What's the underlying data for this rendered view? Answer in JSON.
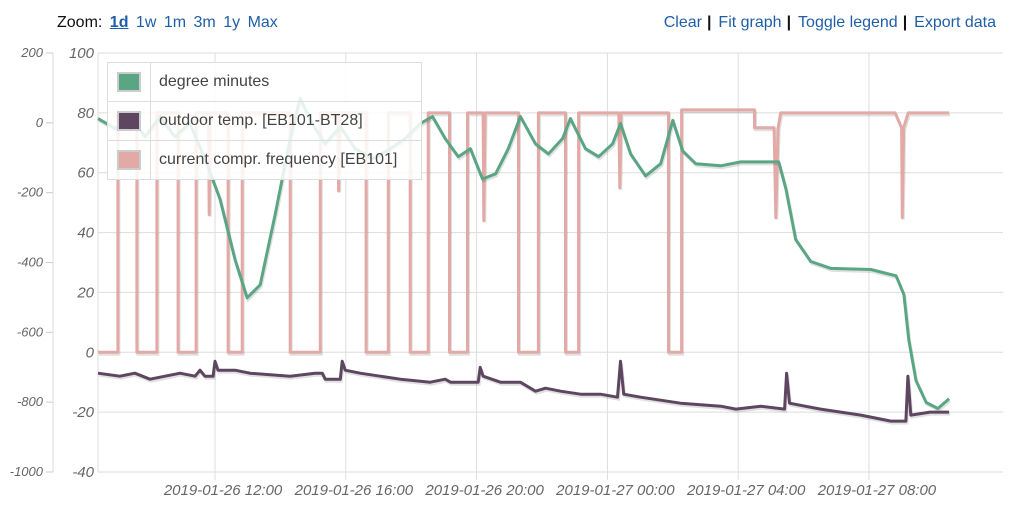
{
  "zoom": {
    "label": "Zoom:",
    "options": [
      "1d",
      "1w",
      "1m",
      "3m",
      "1y",
      "Max"
    ],
    "active": "1d"
  },
  "actions": {
    "clear": "Clear",
    "fit": "Fit graph",
    "toggle_legend": "Toggle legend",
    "export": "Export data"
  },
  "colors": {
    "degree_minutes": "#5aa684",
    "outdoor": "#5e4660",
    "compressor": "#e3a9a6",
    "link": "#1f5fa8"
  },
  "chart_data": {
    "type": "line",
    "x_unit": "hours since 2019-01-26 00:00",
    "xlim": [
      8.42,
      36.1
    ],
    "x_ticks": [
      12,
      16,
      20,
      24,
      28,
      32
    ],
    "x_tick_labels": [
      "2019-01-26 12:00",
      "2019-01-26 16:00",
      "2019-01-26 20:00",
      "2019-01-27 00:00",
      "2019-01-27 04:00",
      "2019-01-27 08:00"
    ],
    "y_left": {
      "ylim": [
        -1000,
        200
      ],
      "ticks": [
        "200",
        "0",
        "-200",
        "-400",
        "-600",
        "-800",
        "-1000"
      ]
    },
    "y_right": {
      "ylim": [
        -40,
        100
      ],
      "ticks": [
        "100",
        "80",
        "60",
        "40",
        "20",
        "0",
        "-20",
        "-40"
      ]
    },
    "grid": true,
    "legend_position": "top-left",
    "series": [
      {
        "name": "degree minutes",
        "axis": "left",
        "color": "#5aa684",
        "points": [
          [
            8.42,
            12
          ],
          [
            8.94,
            -16
          ],
          [
            9.4,
            18
          ],
          [
            9.86,
            -39
          ],
          [
            10.32,
            18
          ],
          [
            10.77,
            -39
          ],
          [
            11.23,
            -2
          ],
          [
            11.69,
            -103
          ],
          [
            12.15,
            -218
          ],
          [
            12.61,
            -391
          ],
          [
            12.98,
            -501
          ],
          [
            13.38,
            -464
          ],
          [
            13.84,
            -262
          ],
          [
            14.3,
            -45
          ],
          [
            14.6,
            70
          ],
          [
            14.97,
            -2
          ],
          [
            15.37,
            -60
          ],
          [
            15.83,
            -11
          ],
          [
            16.29,
            -74
          ],
          [
            16.81,
            -103
          ],
          [
            17.36,
            -74
          ],
          [
            17.82,
            -45
          ],
          [
            18.28,
            -2
          ],
          [
            18.65,
            18
          ],
          [
            19.04,
            -45
          ],
          [
            19.44,
            -97
          ],
          [
            19.81,
            -74
          ],
          [
            20.18,
            -161
          ],
          [
            20.58,
            -146
          ],
          [
            20.97,
            -74
          ],
          [
            21.34,
            18
          ],
          [
            21.8,
            -60
          ],
          [
            22.2,
            -89
          ],
          [
            22.63,
            -45
          ],
          [
            22.87,
            12
          ],
          [
            23.33,
            -74
          ],
          [
            23.73,
            -97
          ],
          [
            24.16,
            -60
          ],
          [
            24.4,
            -2
          ],
          [
            24.71,
            -89
          ],
          [
            25.17,
            -152
          ],
          [
            25.63,
            -117
          ],
          [
            26.0,
            7
          ],
          [
            26.3,
            -80
          ],
          [
            26.7,
            -117
          ],
          [
            27.47,
            -123
          ],
          [
            28.08,
            -112
          ],
          [
            29.24,
            -112
          ],
          [
            29.46,
            -189
          ],
          [
            29.76,
            -334
          ],
          [
            30.22,
            -397
          ],
          [
            30.84,
            -417
          ],
          [
            32.06,
            -420
          ],
          [
            32.83,
            -438
          ],
          [
            33.07,
            -492
          ],
          [
            33.22,
            -622
          ],
          [
            33.44,
            -738
          ],
          [
            33.75,
            -801
          ],
          [
            34.11,
            -818
          ],
          [
            34.45,
            -790
          ]
        ]
      },
      {
        "name": "outdoor temp. [EB101-BT28]",
        "axis": "right",
        "color": "#5e4660",
        "points": [
          [
            8.42,
            -7
          ],
          [
            9.09,
            -8
          ],
          [
            9.55,
            -7
          ],
          [
            10.01,
            -9
          ],
          [
            10.47,
            -8
          ],
          [
            10.93,
            -7
          ],
          [
            11.39,
            -8
          ],
          [
            11.54,
            -6
          ],
          [
            11.69,
            -8
          ],
          [
            11.94,
            -8
          ],
          [
            12.0,
            -3
          ],
          [
            12.09,
            -6
          ],
          [
            12.61,
            -6
          ],
          [
            13.07,
            -7
          ],
          [
            14.3,
            -8
          ],
          [
            15.06,
            -7
          ],
          [
            15.28,
            -7
          ],
          [
            15.37,
            -9
          ],
          [
            15.83,
            -9
          ],
          [
            15.89,
            -3
          ],
          [
            15.98,
            -6
          ],
          [
            16.44,
            -7
          ],
          [
            17.05,
            -8
          ],
          [
            17.67,
            -9
          ],
          [
            18.58,
            -10
          ],
          [
            19.04,
            -9
          ],
          [
            19.2,
            -10
          ],
          [
            20.05,
            -10
          ],
          [
            20.11,
            -5
          ],
          [
            20.2,
            -8
          ],
          [
            20.73,
            -10
          ],
          [
            21.34,
            -10
          ],
          [
            21.8,
            -13
          ],
          [
            22.11,
            -12
          ],
          [
            22.57,
            -13
          ],
          [
            23.18,
            -14
          ],
          [
            23.79,
            -14
          ],
          [
            24.31,
            -15
          ],
          [
            24.4,
            -3
          ],
          [
            24.5,
            -14
          ],
          [
            25.02,
            -15
          ],
          [
            25.63,
            -16
          ],
          [
            26.24,
            -17
          ],
          [
            27.47,
            -18
          ],
          [
            27.93,
            -19
          ],
          [
            28.69,
            -18
          ],
          [
            29.42,
            -19
          ],
          [
            29.48,
            -7
          ],
          [
            29.57,
            -17
          ],
          [
            30.52,
            -19
          ],
          [
            31.75,
            -21
          ],
          [
            32.67,
            -23
          ],
          [
            33.13,
            -23
          ],
          [
            33.19,
            -8
          ],
          [
            33.28,
            -21
          ],
          [
            33.87,
            -20
          ],
          [
            34.45,
            -20
          ]
        ]
      },
      {
        "name": "current compr. frequency [EB101]",
        "axis": "right",
        "color": "#e3a9a6",
        "points": [
          [
            8.42,
            0
          ],
          [
            9.03,
            0
          ],
          [
            9.03,
            80
          ],
          [
            9.61,
            80
          ],
          [
            9.61,
            0
          ],
          [
            10.22,
            0
          ],
          [
            10.22,
            80
          ],
          [
            10.87,
            80
          ],
          [
            10.87,
            0
          ],
          [
            11.42,
            0
          ],
          [
            11.42,
            80
          ],
          [
            11.8,
            80
          ],
          [
            11.82,
            46
          ],
          [
            11.85,
            80
          ],
          [
            12.4,
            80
          ],
          [
            12.4,
            0
          ],
          [
            12.83,
            0
          ],
          [
            12.83,
            80
          ],
          [
            14.3,
            80
          ],
          [
            14.3,
            0
          ],
          [
            15.22,
            0
          ],
          [
            15.22,
            80
          ],
          [
            15.75,
            80
          ],
          [
            15.78,
            54
          ],
          [
            15.82,
            80
          ],
          [
            16.62,
            80
          ],
          [
            16.62,
            0
          ],
          [
            17.3,
            0
          ],
          [
            17.3,
            80
          ],
          [
            17.97,
            80
          ],
          [
            17.97,
            0
          ],
          [
            18.52,
            0
          ],
          [
            18.52,
            80
          ],
          [
            19.17,
            80
          ],
          [
            19.17,
            0
          ],
          [
            19.72,
            0
          ],
          [
            19.72,
            80
          ],
          [
            20.2,
            80
          ],
          [
            20.22,
            44
          ],
          [
            20.26,
            80
          ],
          [
            21.28,
            80
          ],
          [
            21.28,
            0
          ],
          [
            21.89,
            0
          ],
          [
            21.89,
            80
          ],
          [
            22.72,
            80
          ],
          [
            22.72,
            0
          ],
          [
            23.12,
            0
          ],
          [
            23.12,
            80
          ],
          [
            24.35,
            80
          ],
          [
            24.38,
            55
          ],
          [
            24.42,
            80
          ],
          [
            25.87,
            80
          ],
          [
            25.87,
            0
          ],
          [
            26.27,
            0
          ],
          [
            26.27,
            81
          ],
          [
            28.5,
            81
          ],
          [
            28.5,
            75
          ],
          [
            29.1,
            75
          ],
          [
            29.15,
            45
          ],
          [
            29.22,
            75
          ],
          [
            29.3,
            80
          ],
          [
            32.8,
            80
          ],
          [
            33.0,
            75
          ],
          [
            33.02,
            45
          ],
          [
            33.06,
            75
          ],
          [
            33.2,
            80
          ],
          [
            34.45,
            80
          ]
        ]
      }
    ]
  }
}
